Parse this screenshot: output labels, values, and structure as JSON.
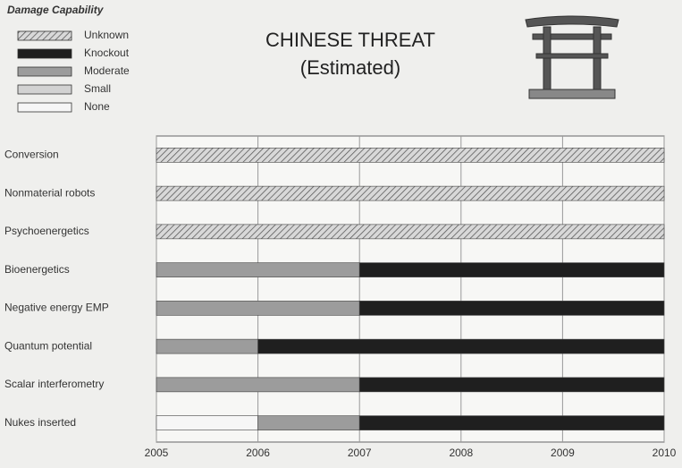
{
  "chart_data": {
    "type": "timeline",
    "title": "CHINESE THREAT",
    "subtitle": "(Estimated)",
    "legend_title": "Damage Capability",
    "categories": [
      "Conversion",
      "Nonmaterial robots",
      "Psychoenergetics",
      "Bioenergetics",
      "Negative energy EMP",
      "Quantum potential",
      "Scalar interferometry",
      "Nukes inserted"
    ],
    "series": [
      {
        "name": "Unknown",
        "color": "#c4c4c4",
        "hatch": true,
        "values": [
          5,
          5,
          5,
          0,
          0,
          0,
          0,
          0
        ]
      },
      {
        "name": "Knockout",
        "color": "#1f1f1f",
        "hatch": false,
        "values": [
          0,
          0,
          0,
          3,
          3,
          4,
          3,
          3
        ]
      },
      {
        "name": "Moderate",
        "color": "#9c9c9c",
        "hatch": false,
        "values": [
          0,
          0,
          0,
          2,
          2,
          1,
          2,
          1
        ]
      },
      {
        "name": "Small",
        "color": "#d2d2d2",
        "hatch": false,
        "values": [
          0,
          0,
          0,
          0,
          0,
          0,
          0,
          0
        ]
      },
      {
        "name": "None",
        "color": "#f6f6f6",
        "hatch": false,
        "values": [
          0,
          0,
          0,
          0,
          0,
          0,
          0,
          1
        ]
      }
    ],
    "xlim": [
      2005,
      2010
    ],
    "xticks": [
      2005,
      2006,
      2007,
      2008,
      2009,
      2010
    ],
    "grid": true
  }
}
